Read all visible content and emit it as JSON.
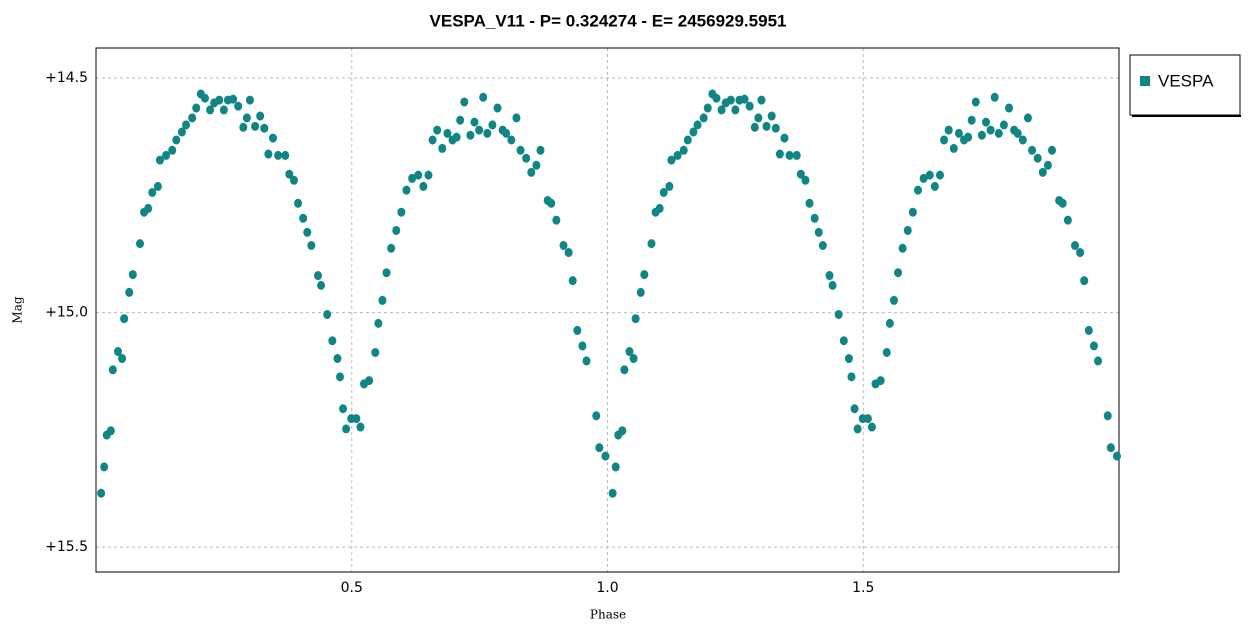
{
  "chart_data": {
    "type": "scatter",
    "title": "VESPA_V11  -  P= 0.324274  -  E= 2456929.5951",
    "x_label": "Phase",
    "y_label": "Mag",
    "xlim": [
      0,
      2
    ],
    "ylim": [
      15.553,
      14.436
    ],
    "xticks": [
      0.5,
      {
        "value": 1,
        "label": "1.0"
      },
      1.5
    ],
    "yticks": [
      {
        "value": 14.5,
        "label": "+14.5"
      },
      {
        "value": 15,
        "label": "+15.0"
      },
      {
        "value": 15.5,
        "label": "+15.5"
      }
    ],
    "grid": true,
    "legend": "outside-right",
    "series": [
      {
        "name": "VESPA",
        "color": "#0f8585",
        "x": [
          0.01,
          0.016,
          0.021,
          0.029,
          0.033,
          0.043,
          0.051,
          0.055,
          0.065,
          0.072,
          0.086,
          0.094,
          0.102,
          0.11,
          0.121,
          0.125,
          0.137,
          0.149,
          0.157,
          0.168,
          0.176,
          0.188,
          0.196,
          0.205,
          0.213,
          0.223,
          0.231,
          0.241,
          0.25,
          0.258,
          0.268,
          0.278,
          0.288,
          0.295,
          0.301,
          0.311,
          0.321,
          0.329,
          0.337,
          0.346,
          0.356,
          0.37,
          0.378,
          0.387,
          0.395,
          0.405,
          0.413,
          0.421,
          0.434,
          0.44,
          0.452,
          0.462,
          0.472,
          0.477,
          0.483,
          0.489,
          0.499,
          0.509,
          0.517,
          0.524,
          0.534,
          0.546,
          0.552,
          0.56,
          0.568,
          0.577,
          0.587,
          0.597,
          0.607,
          0.618,
          0.63,
          0.64,
          0.65,
          0.658,
          0.667,
          0.677,
          0.687,
          0.697,
          0.705,
          0.712,
          0.72,
          0.732,
          0.74,
          0.749,
          0.757,
          0.765,
          0.775,
          0.785,
          0.795,
          0.802,
          0.812,
          0.822,
          0.83,
          0.841,
          0.851,
          0.861,
          0.869,
          0.883,
          0.89,
          0.9,
          0.914,
          0.924,
          0.932,
          0.941,
          0.951,
          0.959,
          0.978,
          0.984,
          0.996,
          1.01,
          1.016,
          1.021,
          1.029,
          1.033,
          1.043,
          1.051,
          1.055,
          1.065,
          1.072,
          1.086,
          1.094,
          1.102,
          1.11,
          1.121,
          1.125,
          1.137,
          1.149,
          1.157,
          1.168,
          1.176,
          1.188,
          1.196,
          1.205,
          1.213,
          1.223,
          1.231,
          1.241,
          1.25,
          1.258,
          1.268,
          1.278,
          1.288,
          1.295,
          1.301,
          1.311,
          1.321,
          1.329,
          1.337,
          1.346,
          1.356,
          1.37,
          1.378,
          1.387,
          1.395,
          1.405,
          1.413,
          1.421,
          1.434,
          1.44,
          1.452,
          1.462,
          1.472,
          1.477,
          1.483,
          1.489,
          1.499,
          1.509,
          1.517,
          1.524,
          1.534,
          1.546,
          1.552,
          1.56,
          1.568,
          1.577,
          1.587,
          1.597,
          1.607,
          1.618,
          1.63,
          1.64,
          1.65,
          1.658,
          1.667,
          1.677,
          1.687,
          1.697,
          1.705,
          1.712,
          1.72,
          1.732,
          1.74,
          1.749,
          1.757,
          1.765,
          1.775,
          1.785,
          1.795,
          1.802,
          1.812,
          1.822,
          1.83,
          1.841,
          1.851,
          1.861,
          1.869,
          1.883,
          1.89,
          1.9,
          1.914,
          1.924,
          1.932,
          1.941,
          1.951,
          1.959,
          1.978,
          1.984,
          1.996
        ],
        "values": [
          15.385,
          15.329,
          15.261,
          15.252,
          15.122,
          15.083,
          15.098,
          15.013,
          14.957,
          14.919,
          14.853,
          14.786,
          14.778,
          14.744,
          14.731,
          14.675,
          14.665,
          14.654,
          14.632,
          14.615,
          14.6,
          14.585,
          14.564,
          14.534,
          14.543,
          14.568,
          14.553,
          14.547,
          14.568,
          14.547,
          14.545,
          14.56,
          14.605,
          14.585,
          14.547,
          14.603,
          14.581,
          14.607,
          14.662,
          14.628,
          14.665,
          14.665,
          14.705,
          14.718,
          14.767,
          14.799,
          14.829,
          14.857,
          14.921,
          14.942,
          15.004,
          15.06,
          15.098,
          15.137,
          15.205,
          15.248,
          15.226,
          15.226,
          15.244,
          15.152,
          15.145,
          15.085,
          15.023,
          14.974,
          14.915,
          14.863,
          14.825,
          14.786,
          14.739,
          14.714,
          14.707,
          14.731,
          14.707,
          14.632,
          14.611,
          14.65,
          14.618,
          14.632,
          14.626,
          14.59,
          14.551,
          14.622,
          14.594,
          14.611,
          14.541,
          14.618,
          14.6,
          14.564,
          14.611,
          14.618,
          14.632,
          14.585,
          14.654,
          14.671,
          14.701,
          14.686,
          14.654,
          14.761,
          14.767,
          14.803,
          14.857,
          14.872,
          14.932,
          15.038,
          15.071,
          15.103,
          15.22,
          15.288,
          15.306,
          15.385,
          15.329,
          15.261,
          15.252,
          15.122,
          15.083,
          15.098,
          15.013,
          14.957,
          14.919,
          14.853,
          14.786,
          14.778,
          14.744,
          14.731,
          14.675,
          14.665,
          14.654,
          14.632,
          14.615,
          14.6,
          14.585,
          14.564,
          14.534,
          14.543,
          14.568,
          14.553,
          14.547,
          14.568,
          14.547,
          14.545,
          14.56,
          14.605,
          14.585,
          14.547,
          14.603,
          14.581,
          14.607,
          14.662,
          14.628,
          14.665,
          14.665,
          14.705,
          14.718,
          14.767,
          14.799,
          14.829,
          14.857,
          14.921,
          14.942,
          15.004,
          15.06,
          15.098,
          15.137,
          15.205,
          15.248,
          15.226,
          15.226,
          15.244,
          15.152,
          15.145,
          15.085,
          15.023,
          14.974,
          14.915,
          14.863,
          14.825,
          14.786,
          14.739,
          14.714,
          14.707,
          14.731,
          14.707,
          14.632,
          14.611,
          14.65,
          14.618,
          14.632,
          14.626,
          14.59,
          14.551,
          14.622,
          14.594,
          14.611,
          14.541,
          14.618,
          14.6,
          14.564,
          14.611,
          14.618,
          14.632,
          14.585,
          14.654,
          14.671,
          14.701,
          14.686,
          14.654,
          14.761,
          14.767,
          14.803,
          14.857,
          14.872,
          14.932,
          15.038,
          15.071,
          15.103,
          15.22,
          15.288,
          15.306
        ]
      }
    ]
  }
}
